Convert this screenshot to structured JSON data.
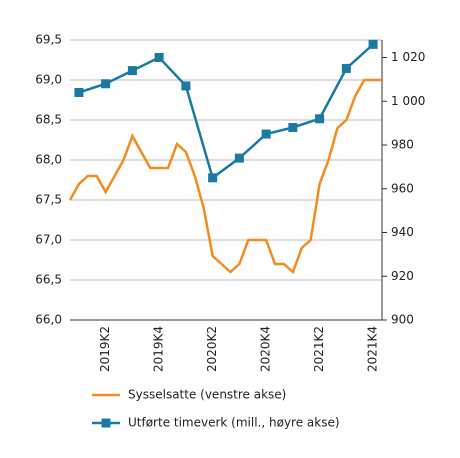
{
  "chart_data": {
    "type": "line",
    "categories": [
      null,
      null,
      null,
      null,
      "2019K2",
      null,
      null,
      null,
      null,
      null,
      "2019K4",
      null,
      null,
      null,
      null,
      null,
      "2020K2",
      null,
      null,
      null,
      null,
      null,
      "2020K4",
      null,
      null,
      null,
      null,
      null,
      "2021K2",
      null,
      null,
      null,
      null,
      null,
      "2021K4",
      null
    ],
    "series": [
      {
        "name": "Sysselsatte (venstre akse)",
        "color": "#f28c1f",
        "values": [
          67.5,
          67.7,
          67.8,
          67.8,
          67.6,
          67.8,
          68.0,
          68.3,
          68.1,
          67.9,
          67.9,
          67.9,
          68.2,
          68.1,
          67.8,
          67.4,
          66.8,
          66.7,
          66.6,
          66.7,
          67.0,
          67.0,
          67.0,
          66.7,
          66.7,
          66.6,
          66.9,
          67.0,
          67.7,
          68.0,
          68.4,
          68.5,
          68.8,
          69.0,
          69.0,
          69.0
        ]
      },
      {
        "name": "Utførte timeverk (mill., høyre akse)",
        "color": "#1a7aa3",
        "axis": "y2",
        "marker": "square",
        "connect_gaps": true,
        "values": [
          null,
          1004,
          null,
          null,
          1008,
          null,
          null,
          1014,
          null,
          null,
          1020,
          null,
          null,
          1007,
          null,
          null,
          965,
          null,
          null,
          974,
          null,
          null,
          985,
          null,
          null,
          988,
          null,
          null,
          992,
          null,
          null,
          1015,
          null,
          null,
          1026,
          null
        ]
      }
    ],
    "ylim": [
      66.0,
      69.5
    ],
    "yticks": [
      {
        "value": 66.0,
        "label": "66,0"
      },
      {
        "value": 66.5,
        "label": "66,5"
      },
      {
        "value": 67.0,
        "label": "67,0"
      },
      {
        "value": 67.5,
        "label": "67,5"
      },
      {
        "value": 68.0,
        "label": "68,0"
      },
      {
        "value": 68.5,
        "label": "68,5"
      },
      {
        "value": 69.0,
        "label": "69,0"
      },
      {
        "value": 69.5,
        "label": "69,5"
      }
    ],
    "y2lim": [
      900,
      1028
    ],
    "y2ticks": [
      900,
      920,
      940,
      960,
      980,
      {
        "value": 1000,
        "label": "1 000"
      },
      {
        "value": 1020,
        "label": "1 020"
      }
    ],
    "grid": true
  }
}
